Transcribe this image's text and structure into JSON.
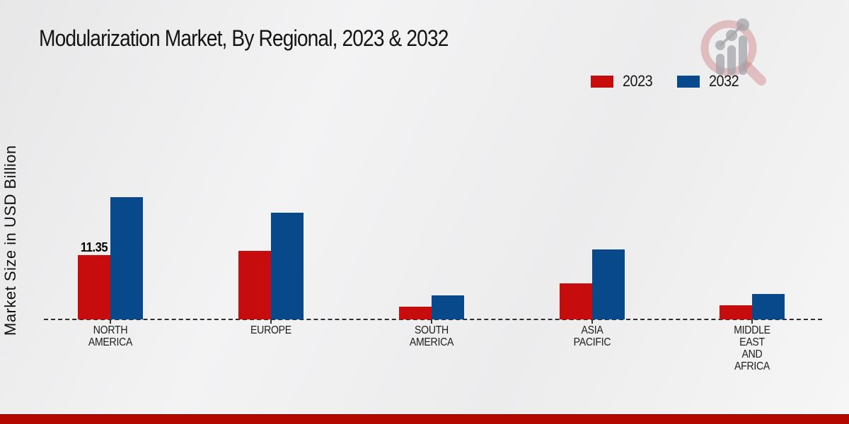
{
  "title": "Modularization Market, By Regional, 2023 & 2032",
  "y_axis_label": "Market Size in USD Billion",
  "legend": {
    "items": [
      {
        "label": "2023",
        "color": "#c60c0c"
      },
      {
        "label": "2032",
        "color": "#07498a"
      }
    ]
  },
  "footer": {
    "color": "#b20800"
  },
  "watermark": {
    "name": "market-research-magnifier-logo"
  },
  "chart_data": {
    "type": "bar",
    "title": "Modularization Market, By Regional, 2023 & 2032",
    "ylabel": "Market Size in USD Billion",
    "xlabel": "",
    "categories": [
      "NORTH AMERICA",
      "EUROPE",
      "SOUTH AMERICA",
      "ASIA PACIFIC",
      "MIDDLE EAST AND AFRICA"
    ],
    "category_lines": [
      [
        "NORTH",
        "AMERICA"
      ],
      [
        "EUROPE"
      ],
      [
        "SOUTH",
        "AMERICA"
      ],
      [
        "ASIA",
        "PACIFIC"
      ],
      [
        "MIDDLE",
        "EAST",
        "AND",
        "AFRICA"
      ]
    ],
    "series": [
      {
        "name": "2023",
        "color": "#c60c0c",
        "values": [
          11.35,
          12.1,
          2.25,
          6.4,
          2.5
        ]
      },
      {
        "name": "2032",
        "color": "#07498a",
        "values": [
          21.6,
          18.8,
          4.25,
          12.3,
          4.5
        ]
      }
    ],
    "data_labels": [
      {
        "series_index": 0,
        "category_index": 0,
        "text": "11.35"
      }
    ],
    "baseline_style": "dashed",
    "grid": false,
    "legend_position": "top-right",
    "ylim": [
      0,
      25
    ]
  }
}
